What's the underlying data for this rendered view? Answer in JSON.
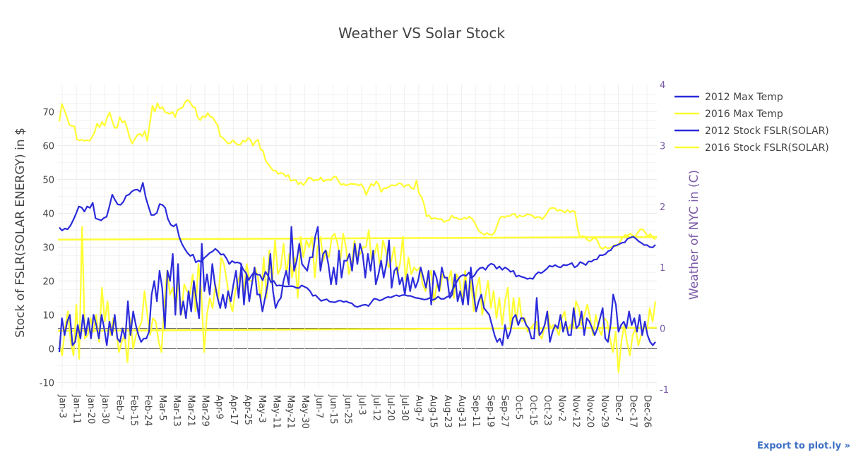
{
  "export_link": "Export to plot.ly »",
  "chart_data": {
    "type": "line",
    "title": "Weather VS Solar Stock",
    "ylabel": "Stock of FSLR(SOLAR ENERGY) in $",
    "y2label": "Weather of NYC in (C)",
    "ylim": [
      -12,
      78
    ],
    "y2lim": [
      -1,
      4
    ],
    "yticks": [
      -10,
      0,
      10,
      20,
      30,
      40,
      50,
      60,
      70
    ],
    "y2ticks": [
      -1,
      0,
      1,
      2,
      3,
      4
    ],
    "xticks": [
      "Jan-3",
      "Jan-11",
      "Jan-20",
      "Jan-30",
      "Feb-7",
      "Feb-15",
      "Feb-24",
      "Mar-5",
      "Mar-13",
      "Mar-21",
      "Mar-29",
      "Apr-9",
      "Apr-17",
      "Apr-25",
      "May-3",
      "May-11",
      "May-21",
      "May-30",
      "Jun-7",
      "Jun-15",
      "Jun-25",
      "Jul-3",
      "Jul-12",
      "Jul-20",
      "Jul-30",
      "Aug-7",
      "Aug-15",
      "Aug-23",
      "Aug-31",
      "Sep-11",
      "Sep-19",
      "Sep-27",
      "Oct-5",
      "Oct-15",
      "Oct-23",
      "Nov-2",
      "Nov-12",
      "Nov-20",
      "Nov-29",
      "Dec-7",
      "Dec-17",
      "Dec-26"
    ],
    "grid": true,
    "legend_position": "top-right",
    "colors": {
      "blue": "#2b2bdc",
      "yellow": "#ffff33",
      "axis_right": "#7b5aa6"
    },
    "series": [
      {
        "name": "2012 Max Temp",
        "color": "#2b2bdc",
        "axis": "y",
        "values": [
          -1,
          9,
          4,
          8,
          10,
          1,
          2,
          7,
          3,
          10,
          4,
          9,
          3,
          10,
          7,
          3,
          10,
          6,
          1,
          8,
          4,
          10,
          3,
          2,
          6,
          3,
          14,
          4,
          11,
          7,
          4,
          2,
          3,
          3,
          5,
          16,
          20,
          14,
          23,
          18,
          6,
          23,
          20,
          28,
          10,
          25,
          10,
          14,
          9,
          17,
          11,
          20,
          14,
          9,
          31,
          17,
          22,
          16,
          25,
          19,
          15,
          12,
          16,
          12,
          17,
          14,
          19,
          23,
          15,
          25,
          13,
          22,
          14,
          19,
          24,
          16,
          16,
          11,
          15,
          19,
          28,
          17,
          12,
          14,
          15,
          20,
          23,
          19,
          36,
          23,
          26,
          31,
          25,
          24,
          23,
          27,
          27,
          33,
          36,
          23,
          28,
          29,
          25,
          19,
          24,
          19,
          29,
          21,
          26,
          26,
          28,
          23,
          31,
          25,
          31,
          28,
          21,
          28,
          23,
          29,
          19,
          22,
          26,
          21,
          25,
          32,
          18,
          23,
          24,
          19,
          21,
          16,
          22,
          17,
          21,
          18,
          20,
          24,
          21,
          18,
          23,
          13,
          23,
          21,
          17,
          24,
          21,
          21,
          15,
          16,
          22,
          14,
          17,
          13,
          20,
          13,
          24,
          17,
          11,
          14,
          16,
          12,
          11,
          10,
          7,
          4,
          2,
          3,
          1,
          7,
          3,
          5,
          9,
          10,
          7,
          9,
          9,
          7,
          6,
          3,
          3,
          15,
          4,
          5,
          7,
          11,
          2,
          5,
          7,
          6,
          10,
          5,
          8,
          4,
          4,
          12,
          6,
          7,
          11,
          4,
          9,
          8,
          6,
          4,
          6,
          9,
          12,
          3,
          2,
          7,
          16,
          13,
          5,
          7,
          8,
          6,
          11,
          7,
          9,
          5,
          10,
          4,
          8,
          4,
          2,
          1,
          2
        ],
        "unit_note": ""
      },
      {
        "name": "2016 Max Temp",
        "color": "#ffff33",
        "axis": "y",
        "values": [
          2,
          -2,
          6,
          11,
          2,
          -2,
          13,
          -3,
          36,
          3,
          4,
          9,
          5,
          10,
          2,
          18,
          8,
          14,
          4,
          9,
          6,
          -1,
          2,
          4,
          -4,
          9,
          0,
          4,
          6,
          8,
          17,
          10,
          4,
          9,
          8,
          2,
          -1,
          13,
          23,
          16,
          18,
          11,
          20,
          10,
          19,
          17,
          16,
          22,
          11,
          25,
          17,
          -1,
          10,
          15,
          12,
          19,
          14,
          27,
          25,
          20,
          14,
          11,
          17,
          20,
          23,
          17,
          25,
          20,
          20,
          24,
          21,
          14,
          27,
          15,
          29,
          19,
          32,
          22,
          24,
          31,
          22,
          28,
          21,
          27,
          15,
          33,
          27,
          32,
          30,
          33,
          21,
          30,
          33,
          26,
          29,
          27,
          33,
          34,
          31,
          26,
          34,
          30,
          22,
          25,
          32,
          27,
          28,
          30,
          30,
          35,
          26,
          28,
          31,
          24,
          32,
          29,
          24,
          26,
          30,
          22,
          25,
          33,
          20,
          27,
          22,
          24,
          23,
          24,
          19,
          17,
          21,
          23,
          14,
          19,
          17,
          22,
          21,
          20,
          23,
          15,
          22,
          20,
          14,
          23,
          13,
          20,
          11,
          18,
          21,
          10,
          15,
          20,
          12,
          17,
          9,
          15,
          7,
          14,
          18,
          6,
          15,
          8,
          15,
          8,
          9,
          5,
          6,
          7,
          8,
          4,
          3,
          7,
          11,
          6,
          7,
          6,
          4,
          9,
          11,
          5,
          7,
          6,
          14,
          12,
          7,
          10,
          13,
          9,
          4,
          10,
          6,
          4,
          9,
          8,
          3,
          -1,
          5,
          -7,
          2,
          7,
          2,
          -2,
          4,
          6,
          1,
          4,
          7,
          5,
          12,
          8,
          14
        ],
        "unit_note": ""
      },
      {
        "name": "2012 Stock FSLR(SOLAR)",
        "color": "#2b2bdc",
        "axis": "y",
        "values": [
          35.8,
          34.9,
          35.5,
          35.3,
          36.4,
          38.0,
          39.9,
          42.0,
          41.7,
          40.5,
          42.0,
          41.6,
          43.1,
          38.5,
          38.2,
          37.9,
          38.6,
          39.0,
          42.1,
          45.5,
          43.9,
          42.6,
          42.5,
          43.4,
          45.2,
          45.5,
          46.4,
          46.9,
          47.0,
          46.4,
          49.0,
          44.7,
          42.0,
          39.5,
          39.5,
          40.1,
          42.7,
          42.5,
          41.6,
          38.3,
          36.6,
          36.1,
          36.8,
          33.1,
          31.0,
          29.5,
          28.3,
          27.4,
          27.8,
          25.5,
          26.0,
          25.6,
          26.8,
          27.5,
          28.3,
          28.7,
          29.5,
          28.8,
          27.8,
          27.9,
          26.7,
          25.0,
          25.9,
          25.4,
          25.5,
          25.2,
          23.4,
          22.4,
          20.3,
          21.6,
          22.7,
          21.9,
          21.8,
          20.2,
          22.7,
          21.5,
          19.6,
          20.0,
          18.6,
          18.7,
          18.6,
          18.4,
          18.4,
          18.5,
          18.4,
          18.0,
          17.9,
          18.7,
          18.3,
          17.9,
          17.0,
          15.6,
          15.8,
          14.9,
          14.1,
          14.4,
          14.6,
          13.9,
          13.8,
          13.7,
          14.1,
          14.2,
          13.8,
          14.0,
          13.6,
          13.4,
          12.6,
          12.3,
          12.6,
          12.9,
          13.0,
          12.6,
          13.7,
          14.8,
          14.6,
          14.2,
          14.5,
          15.0,
          15.3,
          15.1,
          15.5,
          15.8,
          15.5,
          15.8,
          15.9,
          15.6,
          15.6,
          15.3,
          15.0,
          14.9,
          14.7,
          14.5,
          14.6,
          15.0,
          14.4,
          14.7,
          15.4,
          14.7,
          14.7,
          15.2,
          15.6,
          17.1,
          18.7,
          20.3,
          21.4,
          21.8,
          21.5,
          22.5,
          20.9,
          21.6,
          23.0,
          23.8,
          24.0,
          23.3,
          24.5,
          25.1,
          24.8,
          23.6,
          24.3,
          23.3,
          24.0,
          23.5,
          22.7,
          23.0,
          21.3,
          21.6,
          21.2,
          21.0,
          20.6,
          20.8,
          20.6,
          21.9,
          22.6,
          22.3,
          22.9,
          23.6,
          24.5,
          24.2,
          24.7,
          24.2,
          24.0,
          24.8,
          24.6,
          24.9,
          25.3,
          24.0,
          24.5,
          25.6,
          25.2,
          24.7,
          25.8,
          25.7,
          26.3,
          26.4,
          27.6,
          27.6,
          27.9,
          28.8,
          29.1,
          30.3,
          30.5,
          30.9,
          31.3,
          31.4,
          32.5,
          32.8,
          33.1,
          32.5,
          31.7,
          31.2,
          30.6,
          30.6,
          30.0,
          29.9,
          30.7
        ],
        "unit_note": ""
      },
      {
        "name": "2016 Stock FSLR(SOLAR)",
        "color": "#ffff33",
        "axis": "y",
        "values": [
          67.1,
          72.3,
          70.5,
          68.5,
          66.1,
          65.8,
          65.7,
          61.9,
          61.5,
          61.7,
          61.4,
          61.6,
          61.4,
          62.5,
          63.9,
          66.5,
          65.4,
          67.0,
          65.8,
          68.3,
          69.8,
          67.3,
          65.2,
          65.3,
          68.4,
          66.9,
          67.2,
          65.0,
          62.2,
          60.6,
          61.9,
          63.1,
          63.5,
          62.8,
          64.2,
          61.4,
          66.6,
          71.8,
          70.0,
          72.5,
          70.9,
          71.4,
          69.9,
          69.6,
          69.4,
          70.0,
          68.4,
          70.5,
          70.9,
          71.3,
          72.8,
          73.5,
          72.8,
          71.5,
          71.2,
          68.3,
          67.5,
          68.7,
          68.3,
          69.6,
          68.5,
          68.3,
          67.0,
          65.9,
          62.7,
          62.3,
          61.5,
          60.6,
          60.7,
          61.6,
          60.8,
          60.2,
          60.3,
          61.5,
          61.1,
          62.2,
          61.7,
          60.0,
          61.2,
          61.7,
          58.9,
          58.4,
          55.6,
          54.5,
          53.6,
          52.6,
          52.6,
          51.6,
          51.9,
          51.8,
          50.9,
          51.3,
          49.6,
          49.8,
          49.8,
          48.6,
          49.1,
          48.3,
          49.2,
          50.5,
          50.4,
          49.6,
          49.9,
          49.8,
          50.6,
          49.4,
          49.8,
          50.0,
          49.7,
          50.8,
          50.8,
          49.5,
          48.4,
          48.7,
          48.2,
          48.5,
          48.7,
          48.6,
          48.6,
          48.2,
          48.6,
          47.5,
          45.4,
          47.2,
          48.7,
          48.1,
          49.4,
          48.5,
          46.3,
          47.4,
          47.4,
          47.8,
          48.3,
          48.2,
          48.3,
          48.9,
          48.7,
          47.8,
          48.3,
          48.4,
          47.4,
          47.2,
          49.7,
          45.9,
          44.8,
          42.7,
          39.1,
          39.4,
          38.3,
          38.6,
          38.4,
          38.3,
          38.3,
          37.4,
          37.8,
          38.0,
          39.3,
          38.7,
          38.6,
          38.2,
          38.2,
          38.7,
          38.4,
          39.0,
          38.5,
          37.4,
          35.9,
          34.6,
          34.1,
          33.6,
          34.2,
          33.7,
          33.6,
          34.3,
          36.2,
          38.4,
          39.1,
          38.8,
          39.2,
          39.1,
          39.7,
          39.8,
          38.7,
          39.4,
          39.0,
          39.2,
          39.7,
          39.6,
          39.4,
          38.6,
          38.9,
          38.9,
          38.2,
          39.1,
          40.2,
          41.4,
          41.6,
          41.5,
          40.7,
          41.0,
          40.7,
          40.2,
          41.0,
          40.3,
          40.7,
          40.5,
          35.9,
          32.9,
          33.3,
          33.0,
          32.1,
          31.8,
          32.4,
          32.9,
          31.8,
          30.0,
          29.4,
          30.1,
          29.6,
          29.8,
          30.2,
          30.7,
          30.4,
          31.7,
          32.9,
          33.6,
          33.4,
          34.0,
          33.4,
          33.1,
          34.3,
          35.3,
          35.2,
          34.2,
          33.2,
          33.9,
          32.8,
          32.3
        ]
      }
    ],
    "reference_lines": [
      {
        "color": "#ffff33",
        "values": [
          32.2,
          33.0
        ]
      },
      {
        "color": "#ffff33",
        "values": [
          5.3,
          6.2
        ]
      }
    ]
  }
}
